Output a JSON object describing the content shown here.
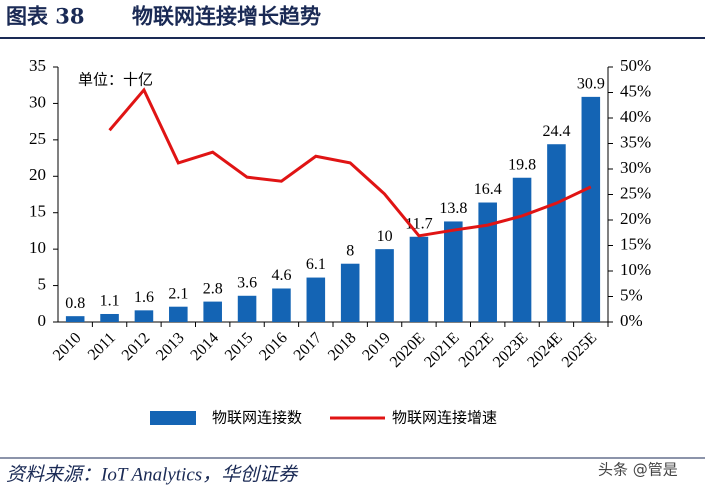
{
  "chart_data": {
    "type": "bar",
    "figure_label": "图表 38",
    "title": "物联网连接增长趋势",
    "unit_note": "单位：十亿",
    "categories": [
      "2010",
      "2011",
      "2012",
      "2013",
      "2014",
      "2015",
      "2016",
      "2017",
      "2018",
      "2019",
      "2020E",
      "2021E",
      "2022E",
      "2023E",
      "2024E",
      "2025E"
    ],
    "series": [
      {
        "name": "物联网连接数",
        "type": "bar",
        "color": "#1464b4",
        "values": [
          0.8,
          1.1,
          1.6,
          2.1,
          2.8,
          3.6,
          4.6,
          6.1,
          8,
          10,
          11.7,
          13.8,
          16.4,
          19.8,
          24.4,
          30.9
        ]
      },
      {
        "name": "物联网连接增速",
        "type": "line",
        "axis": "y2",
        "color": "#e01414",
        "values": [
          null,
          37.6,
          45.5,
          31.2,
          33.3,
          28.4,
          27.6,
          32.5,
          31.2,
          25.1,
          16.9,
          18,
          19,
          20.8,
          23.3,
          26.5
        ]
      }
    ],
    "ylim": [
      0,
      35
    ],
    "yticks": [
      0,
      5,
      10,
      15,
      20,
      25,
      30,
      35
    ],
    "y2lim": [
      0,
      50
    ],
    "y2ticks": [
      {
        "value": 0,
        "label": "0%"
      },
      {
        "value": 5,
        "label": "5%"
      },
      {
        "value": 10,
        "label": "10%"
      },
      {
        "value": 15,
        "label": "15%"
      },
      {
        "value": 20,
        "label": "20%"
      },
      {
        "value": 25,
        "label": "25%"
      },
      {
        "value": 30,
        "label": "30%"
      },
      {
        "value": 35,
        "label": "35%"
      },
      {
        "value": 40,
        "label": "40%"
      },
      {
        "value": 45,
        "label": "45%"
      },
      {
        "value": 50,
        "label": "50%"
      }
    ],
    "grid": false,
    "legend": "bottom"
  },
  "source": "资料来源：IoT Analytics，华创证券",
  "watermark": "头条 @管是"
}
